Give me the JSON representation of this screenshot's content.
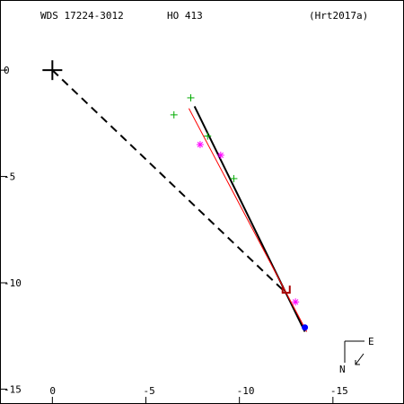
{
  "header": {
    "wds_label": "WDS 17224-3012",
    "discoverer": "HO  413",
    "reference": "(Hrt2017a)"
  },
  "compass": {
    "north": "N",
    "east": "E"
  },
  "chart_data": {
    "type": "scatter",
    "title": "",
    "xlabel": "",
    "ylabel": "",
    "xlim": [
      2.8,
      -18.8
    ],
    "ylim": [
      -15.7,
      3.3
    ],
    "x_ticks": [
      -15,
      -10,
      -5,
      0
    ],
    "x_tick_labels": [
      "-15",
      "-10",
      "-5",
      "0"
    ],
    "y_ticks": [
      0,
      -5,
      -10,
      -15
    ],
    "y_tick_labels": [
      "0",
      "-5",
      "-10",
      "-15"
    ],
    "grid": false,
    "primary": {
      "x": 0,
      "y": 0,
      "marker": "big-plus",
      "color": "#000000"
    },
    "colors": {
      "orbit": "#000000",
      "fit": "#ff0000",
      "green": "#00aa00",
      "magenta": "#ff00ff",
      "blue": "#0000ff",
      "darkred": "#aa0000"
    },
    "orbit_line": {
      "points": [
        [
          -13.5,
          -12.3
        ],
        [
          -7.6,
          -1.7
        ]
      ],
      "style": "solid"
    },
    "fit_line": {
      "points": [
        [
          -13.6,
          -12.3
        ],
        [
          -7.3,
          -1.8
        ]
      ],
      "style": "solid"
    },
    "periastron_line": {
      "points": [
        [
          0,
          0
        ],
        [
          -12.4,
          -10.4
        ]
      ],
      "style": "dashed"
    },
    "observations": [
      {
        "x": -7.4,
        "y": -1.3,
        "marker": "plus",
        "color": "#00aa00"
      },
      {
        "x": -6.5,
        "y": -2.1,
        "marker": "plus",
        "color": "#00aa00"
      },
      {
        "x": -8.3,
        "y": -3.1,
        "marker": "plus",
        "color": "#00aa00"
      },
      {
        "x": -9.7,
        "y": -5.1,
        "marker": "plus",
        "color": "#00aa00"
      },
      {
        "x": -7.9,
        "y": -3.5,
        "marker": "asterisk",
        "color": "#ff00ff"
      },
      {
        "x": -9.0,
        "y": -4.0,
        "marker": "asterisk",
        "color": "#ff00ff"
      },
      {
        "x": -13.0,
        "y": -10.9,
        "marker": "asterisk",
        "color": "#ff00ff"
      }
    ],
    "current_position": {
      "x": -13.5,
      "y": -12.1,
      "marker": "dot",
      "color": "#0000ff"
    },
    "periastron_mark": {
      "x": -12.5,
      "y": -10.3,
      "marker": "bracket",
      "color": "#aa0000"
    }
  }
}
